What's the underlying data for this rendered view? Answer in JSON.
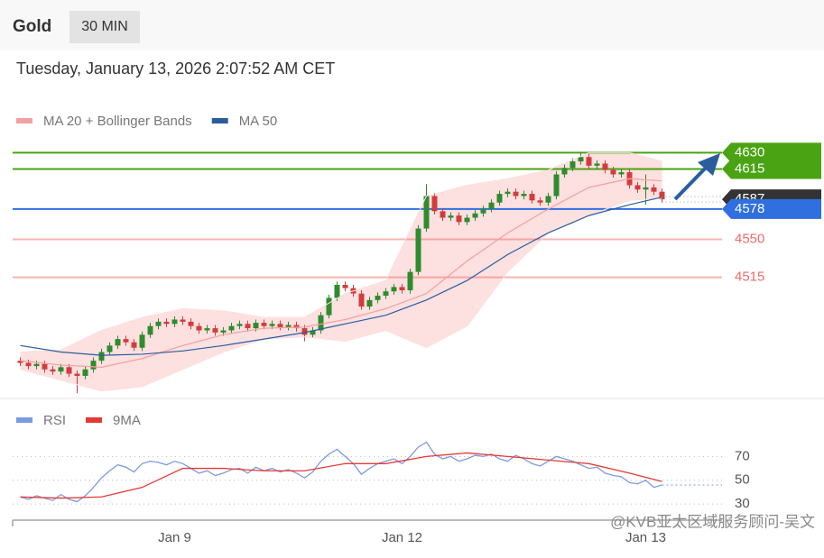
{
  "chart_data": [
    {
      "type": "candlestick",
      "title": "Gold",
      "interval": "30 MIN",
      "subtitle": "Tuesday, January 13, 2026 2:07:52 AM CET",
      "open": [
        4438,
        4436,
        4433,
        4435,
        4430,
        4428,
        4432,
        4426,
        4424,
        4430,
        4438,
        4446,
        4452,
        4458,
        4455,
        4450,
        4462,
        4470,
        4474,
        4472,
        4476,
        4474,
        4470,
        4466,
        4468,
        4464,
        4466,
        4470,
        4472,
        4468,
        4473,
        4470,
        4472,
        4469,
        4471,
        4468,
        4462,
        4466,
        4480,
        4496,
        4508,
        4505,
        4500,
        4488,
        4494,
        4498,
        4502,
        4506,
        4503,
        4520,
        4560,
        4590,
        4576,
        4570,
        4572,
        4566,
        4570,
        4574,
        4578,
        4584,
        4592,
        4594,
        4590,
        4592,
        4586,
        4584,
        4590,
        4610,
        4616,
        4622,
        4626,
        4618,
        4620,
        4614,
        4610,
        4612,
        4600,
        4596,
        4598,
        4594
      ],
      "high": [
        4441,
        4439,
        4438,
        4438,
        4433,
        4435,
        4435,
        4429,
        4433,
        4441,
        4449,
        4455,
        4461,
        4461,
        4458,
        4465,
        4473,
        4477,
        4477,
        4479,
        4479,
        4477,
        4473,
        4471,
        4471,
        4469,
        4473,
        4475,
        4475,
        4476,
        4476,
        4475,
        4475,
        4474,
        4474,
        4471,
        4469,
        4483,
        4499,
        4511,
        4511,
        4508,
        4503,
        4497,
        4501,
        4505,
        4509,
        4509,
        4523,
        4563,
        4601,
        4593,
        4579,
        4575,
        4575,
        4573,
        4577,
        4581,
        4587,
        4595,
        4597,
        4597,
        4595,
        4595,
        4589,
        4593,
        4613,
        4619,
        4625,
        4631,
        4629,
        4623,
        4623,
        4617,
        4615,
        4615,
        4603,
        4610,
        4601,
        4597
      ],
      "low": [
        4433,
        4430,
        4430,
        4427,
        4425,
        4425,
        4423,
        4408,
        4421,
        4427,
        4435,
        4443,
        4449,
        4452,
        4447,
        4447,
        4459,
        4467,
        4469,
        4469,
        4471,
        4467,
        4463,
        4463,
        4461,
        4461,
        4463,
        4467,
        4465,
        4465,
        4467,
        4467,
        4466,
        4466,
        4465,
        4456,
        4459,
        4463,
        4477,
        4493,
        4502,
        4497,
        4485,
        4485,
        4491,
        4495,
        4499,
        4500,
        4500,
        4517,
        4557,
        4573,
        4567,
        4567,
        4563,
        4563,
        4567,
        4571,
        4575,
        4581,
        4589,
        4587,
        4587,
        4583,
        4581,
        4581,
        4587,
        4607,
        4613,
        4619,
        4615,
        4615,
        4611,
        4607,
        4607,
        4597,
        4593,
        4582,
        4591,
        4584
      ],
      "close": [
        4436,
        4433,
        4435,
        4430,
        4428,
        4432,
        4426,
        4424,
        4430,
        4438,
        4446,
        4452,
        4458,
        4455,
        4450,
        4462,
        4470,
        4474,
        4472,
        4476,
        4474,
        4470,
        4466,
        4468,
        4464,
        4466,
        4470,
        4472,
        4468,
        4473,
        4470,
        4472,
        4469,
        4471,
        4468,
        4462,
        4466,
        4480,
        4496,
        4508,
        4505,
        4500,
        4488,
        4494,
        4498,
        4502,
        4506,
        4503,
        4520,
        4560,
        4590,
        4576,
        4570,
        4572,
        4566,
        4570,
        4574,
        4578,
        4584,
        4592,
        4594,
        4590,
        4592,
        4586,
        4584,
        4590,
        4610,
        4616,
        4622,
        4626,
        4618,
        4620,
        4614,
        4610,
        4612,
        4600,
        4596,
        4598,
        4594,
        4587
      ],
      "up_color": "#2e8b2e",
      "down_color": "#d23c3c",
      "ylim": [
        4404,
        4642
      ],
      "overlays": {
        "x": [
          0,
          5,
          10,
          15,
          20,
          25,
          30,
          35,
          40,
          45,
          50,
          55,
          60,
          65,
          70,
          75,
          79
        ],
        "series": [
          {
            "name": "MA 20 + Bollinger Bands",
            "color": "#f4a0a0",
            "band_color": "#fde0e0",
            "values": [
              4438,
              4434,
              4432,
              4440,
              4452,
              4462,
              4468,
              4469,
              4476,
              4486,
              4500,
              4530,
              4556,
              4578,
              4598,
              4606,
              4604
            ],
            "upper": [
              4446,
              4448,
              4466,
              4478,
              4486,
              4484,
              4478,
              4478,
              4500,
              4512,
              4590,
              4600,
              4606,
              4614,
              4630,
              4630,
              4622
            ],
            "lower": [
              4430,
              4420,
              4410,
              4414,
              4430,
              4446,
              4458,
              4460,
              4456,
              4466,
              4450,
              4470,
              4520,
              4556,
              4572,
              4586,
              4588
            ]
          },
          {
            "name": "MA 50",
            "color": "#2a5d9f",
            "values": [
              4452,
              4446,
              4443,
              4444,
              4447,
              4452,
              4458,
              4464,
              4472,
              4480,
              4494,
              4512,
              4536,
              4556,
              4572,
              4582,
              4589
            ]
          }
        ]
      },
      "levels": [
        {
          "value": 4630,
          "color": "#4aa312",
          "boxed": true
        },
        {
          "value": 4615,
          "color": "#4aa312",
          "boxed": true
        },
        {
          "value": 4578,
          "color": "#2f6fe0",
          "boxed": true
        },
        {
          "value": 4550,
          "color": "#f06a6a",
          "boxed": false
        },
        {
          "value": 4515,
          "color": "#f06a6a",
          "boxed": false
        }
      ],
      "last_price": {
        "value": 4587,
        "color": "#333333"
      },
      "xticks": [
        {
          "value": 19,
          "label": "Jan 9"
        },
        {
          "value": 47,
          "label": "Jan 12"
        },
        {
          "value": 77,
          "label": "Jan 13"
        }
      ]
    },
    {
      "type": "line",
      "series": [
        {
          "name": "RSI",
          "color": "#7b9be0",
          "values": [
            36,
            34,
            37,
            35,
            33,
            38,
            34,
            32,
            37,
            44,
            52,
            58,
            63,
            61,
            57,
            64,
            66,
            65,
            63,
            66,
            64,
            60,
            56,
            58,
            54,
            56,
            59,
            60,
            56,
            61,
            58,
            60,
            57,
            59,
            56,
            52,
            57,
            66,
            72,
            76,
            70,
            64,
            55,
            60,
            64,
            66,
            68,
            64,
            70,
            78,
            82,
            72,
            68,
            70,
            66,
            68,
            71,
            70,
            72,
            68,
            66,
            71,
            68,
            64,
            62,
            66,
            70,
            68,
            66,
            63,
            60,
            61,
            56,
            54,
            53,
            48,
            47,
            50,
            44,
            46
          ]
        },
        {
          "name": "9MA",
          "color": "#e53935",
          "x": [
            0,
            5,
            10,
            15,
            20,
            25,
            30,
            35,
            40,
            45,
            50,
            55,
            60,
            65,
            70,
            75,
            79
          ],
          "values": [
            36,
            35,
            36,
            44,
            60,
            60,
            58,
            58,
            64,
            64,
            70,
            73,
            70,
            67,
            64,
            56,
            49
          ]
        }
      ],
      "ylim": [
        18,
        90
      ],
      "yticks": [
        30,
        50,
        70
      ]
    }
  ],
  "watermark": "@KVB亚太区域服务顾问-吴文"
}
